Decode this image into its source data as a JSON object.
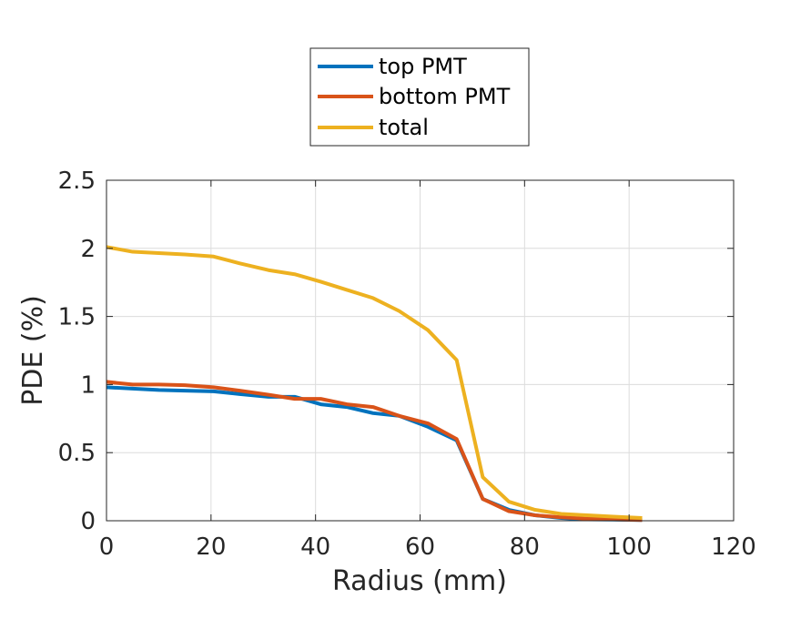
{
  "chart_data": {
    "type": "line",
    "title": "",
    "xlabel": "Radius (mm)",
    "ylabel": "PDE (%)",
    "xlim": [
      0,
      120
    ],
    "ylim": [
      0,
      2.5
    ],
    "xticks": [
      0,
      20,
      40,
      60,
      80,
      100,
      120
    ],
    "yticks": [
      0,
      0.5,
      1,
      1.5,
      2,
      2.5
    ],
    "xtick_labels": [
      "0",
      "20",
      "40",
      "60",
      "80",
      "100",
      "120"
    ],
    "ytick_labels": [
      "0",
      "0.5",
      "1",
      "1.5",
      "2",
      "2.5"
    ],
    "grid": true,
    "legend_position": "top-center (outside, above axes)",
    "series": [
      {
        "name": "top PMT",
        "color": "#0072BD",
        "x": [
          0,
          5,
          10,
          15,
          20.5,
          25.5,
          31,
          36,
          41,
          46,
          51,
          56,
          61.5,
          67,
          72,
          77,
          82,
          87,
          92,
          97,
          102.5
        ],
        "y": [
          0.98,
          0.97,
          0.96,
          0.955,
          0.95,
          0.93,
          0.91,
          0.91,
          0.855,
          0.835,
          0.79,
          0.77,
          0.69,
          0.59,
          0.16,
          0.08,
          0.04,
          0.02,
          0.01,
          0.008,
          0.005
        ]
      },
      {
        "name": "bottom PMT",
        "color": "#D95319",
        "x": [
          0,
          5,
          10,
          15,
          20.5,
          25.5,
          31,
          36,
          41,
          46,
          51,
          56,
          61.5,
          67,
          72,
          77,
          82,
          87,
          92,
          97,
          102.5
        ],
        "y": [
          1.02,
          1.0,
          1.0,
          0.995,
          0.98,
          0.955,
          0.925,
          0.895,
          0.895,
          0.855,
          0.835,
          0.77,
          0.715,
          0.6,
          0.16,
          0.07,
          0.04,
          0.025,
          0.015,
          0.01,
          0.005
        ]
      },
      {
        "name": "total",
        "color": "#EDB120",
        "x": [
          0,
          5,
          10,
          15,
          20.5,
          25.5,
          31,
          36,
          41,
          46,
          51,
          56,
          61.5,
          67,
          72,
          77,
          82,
          87,
          92,
          97,
          102.5
        ],
        "y": [
          2.01,
          1.975,
          1.965,
          1.955,
          1.94,
          1.89,
          1.84,
          1.81,
          1.755,
          1.695,
          1.635,
          1.54,
          1.4,
          1.18,
          0.32,
          0.14,
          0.08,
          0.05,
          0.04,
          0.03,
          0.02
        ]
      }
    ]
  }
}
